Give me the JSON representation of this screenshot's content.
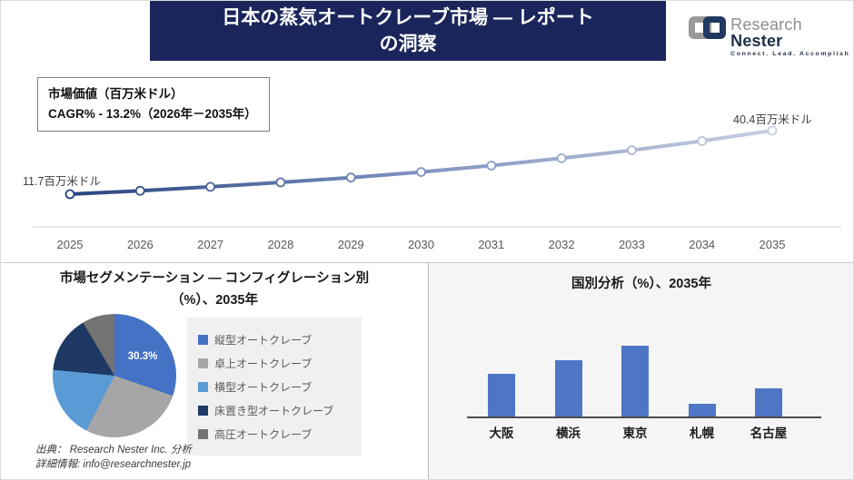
{
  "header": {
    "title_line1": "日本の蒸気オートクレーブ市場 — レポート",
    "title_line2": "の洞察"
  },
  "logo": {
    "brand_first": "Research",
    "brand_second": "Nester",
    "tagline": "Connect. Lead. Accomplish"
  },
  "info_box": {
    "line1": "市場価値（百万米ドル）",
    "line2": "CAGR% - 13.2%（2026年－2035年）"
  },
  "segmentation": {
    "title_line1": "市場セグメンテーション — コンフィグレーション別",
    "title_line2": "（%）、2035年",
    "datalabel": "30.3%"
  },
  "country": {
    "title": "国別分析（%）、2035年"
  },
  "footer": {
    "source": "出典： Research Nester Inc. 分析",
    "contact": "詳細情報: info@researchnester.jp"
  },
  "colors": {
    "header_bg": "#1a265b",
    "accent_blue": "#4472c4",
    "bar_blue": "#4d77c6",
    "panel_bg": "#f5f5f5",
    "legend_bg": "#f0f0f0",
    "line_gradient": [
      "#27447f",
      "#8194c1",
      "#c9cede"
    ],
    "axis_gray": "#d9d9d9"
  },
  "chart_data": [
    {
      "type": "line",
      "title": "市場価値（百万米ドル）",
      "x": [
        "2025",
        "2026",
        "2027",
        "2028",
        "2029",
        "2030",
        "2031",
        "2032",
        "2033",
        "2034",
        "2035"
      ],
      "values": [
        11.7,
        13.2,
        15.0,
        17.0,
        19.2,
        21.7,
        24.6,
        27.9,
        31.5,
        35.7,
        40.4
      ],
      "start_label": "11.7百万米ドル",
      "end_label": "40.4百万米ドル",
      "cagr": "13.2%",
      "cagr_period": "2026年－2035年",
      "ylabel": "百万米ドル",
      "ylim": [
        0,
        45
      ],
      "grid": false,
      "legend_position": "none"
    },
    {
      "type": "pie",
      "title": "市場セグメンテーション — コンフィグレーション別（%）、2035年",
      "labels": [
        "縦型オートクレーブ",
        "卓上オートクレーブ",
        "横型オートクレーブ",
        "床置き型オートクレーブ",
        "高圧オートクレーブ"
      ],
      "values": [
        30.3,
        27.2,
        19.0,
        15.0,
        8.5
      ],
      "colors": [
        "#4472c4",
        "#a6a6a6",
        "#5b9bd5",
        "#1f3864",
        "#737373"
      ],
      "datalabels": [
        "30.3%",
        "",
        "",
        "",
        ""
      ],
      "legend_position": "right"
    },
    {
      "type": "bar",
      "title": "国別分析（%）、2035年",
      "categories": [
        "大阪",
        "横浜",
        "東京",
        "札幌",
        "名古屋"
      ],
      "values": [
        30,
        40,
        50,
        9,
        20
      ],
      "color": "#4d77c6",
      "ylim": [
        0,
        55
      ],
      "grid": false,
      "legend_position": "none"
    }
  ]
}
